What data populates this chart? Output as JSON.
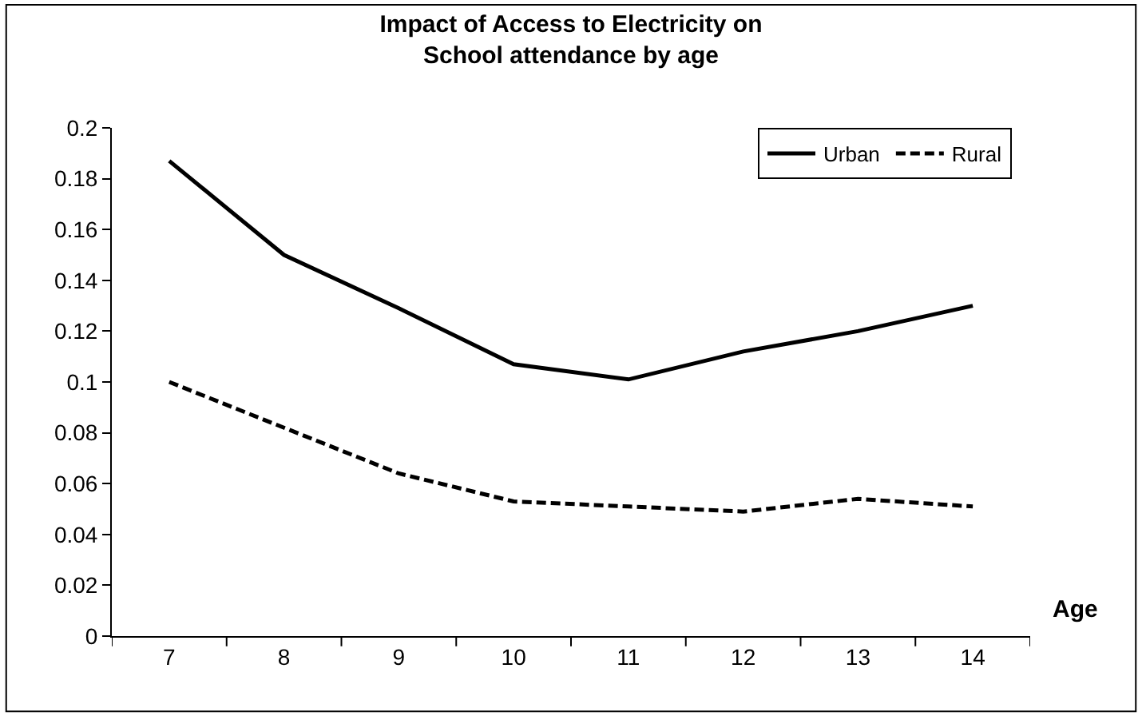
{
  "chart_data": {
    "type": "line",
    "title": "Impact of Access to Electricity on School attendance by age",
    "xlabel": "Age",
    "categories": [
      "7",
      "8",
      "9",
      "10",
      "11",
      "12",
      "13",
      "14"
    ],
    "series": [
      {
        "name": "Urban",
        "color": "#000000",
        "line_style": "solid",
        "values": [
          0.187,
          0.15,
          0.129,
          0.107,
          0.101,
          0.112,
          0.12,
          0.13
        ]
      },
      {
        "name": "Rural",
        "color": "#000000",
        "line_style": "dashed",
        "values": [
          0.1,
          0.082,
          0.064,
          0.053,
          0.051,
          0.049,
          0.054,
          0.051
        ]
      }
    ],
    "ylim": [
      0,
      0.2
    ],
    "yticks": [
      {
        "value": 0,
        "label": "0"
      },
      {
        "value": 0.02,
        "label": "0.02"
      },
      {
        "value": 0.04,
        "label": "0.04"
      },
      {
        "value": 0.06,
        "label": "0.06"
      },
      {
        "value": 0.08,
        "label": "0.08"
      },
      {
        "value": 0.1,
        "label": "0.1"
      },
      {
        "value": 0.12,
        "label": "0.12"
      },
      {
        "value": 0.14,
        "label": "0.14"
      },
      {
        "value": 0.16,
        "label": "0.16"
      },
      {
        "value": 0.18,
        "label": "0.18"
      },
      {
        "value": 0.2,
        "label": "0.2"
      }
    ],
    "grid": false,
    "legend": "top right",
    "marker": "none"
  }
}
